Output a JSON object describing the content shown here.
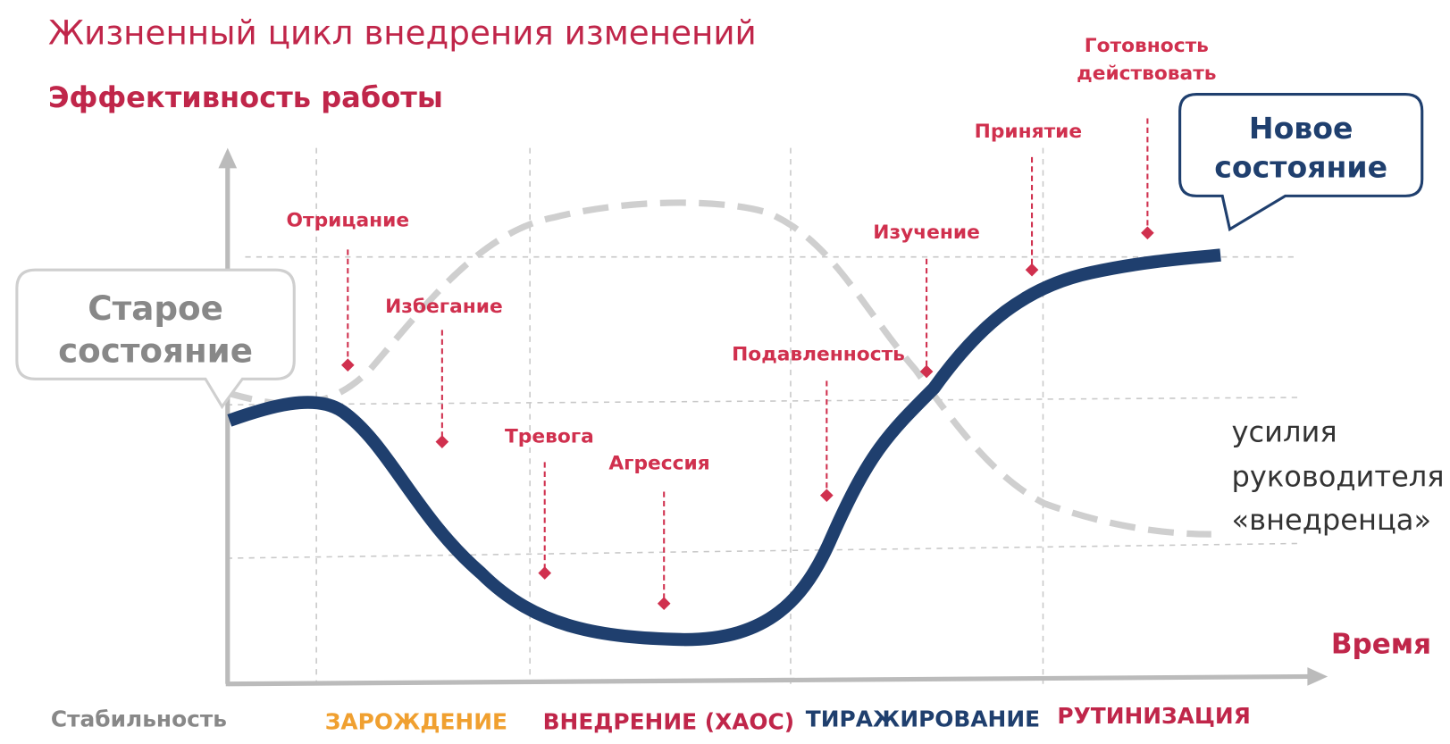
{
  "title": "Жизненный цикл внедрения изменений",
  "y_axis_label": "Эффективность работы",
  "x_axis_label": "Время",
  "old_state": {
    "lines": [
      "Старое",
      "состояние"
    ]
  },
  "new_state": {
    "lines": [
      "Новое",
      "состояние"
    ]
  },
  "stages": [
    {
      "lines": [
        "Отрицание"
      ]
    },
    {
      "lines": [
        "Избегание"
      ]
    },
    {
      "lines": [
        "Тревога"
      ]
    },
    {
      "lines": [
        "Агрессия"
      ]
    },
    {
      "lines": [
        "Подавленность"
      ]
    },
    {
      "lines": [
        "Изучение"
      ]
    },
    {
      "lines": [
        "Принятие"
      ]
    },
    {
      "lines": [
        "Готовность",
        "действовать"
      ]
    }
  ],
  "manager_effort": {
    "lines": [
      "усилия",
      "руководителя",
      "«внедренца»"
    ]
  },
  "phases": [
    "Стабильность",
    "ЗАРОЖДЕНИЕ",
    "ВНЕДРЕНИЕ (ХАОС)",
    "ТИРАЖИРОВАНИЕ",
    "РУТИНИЗАЦИЯ"
  ]
}
